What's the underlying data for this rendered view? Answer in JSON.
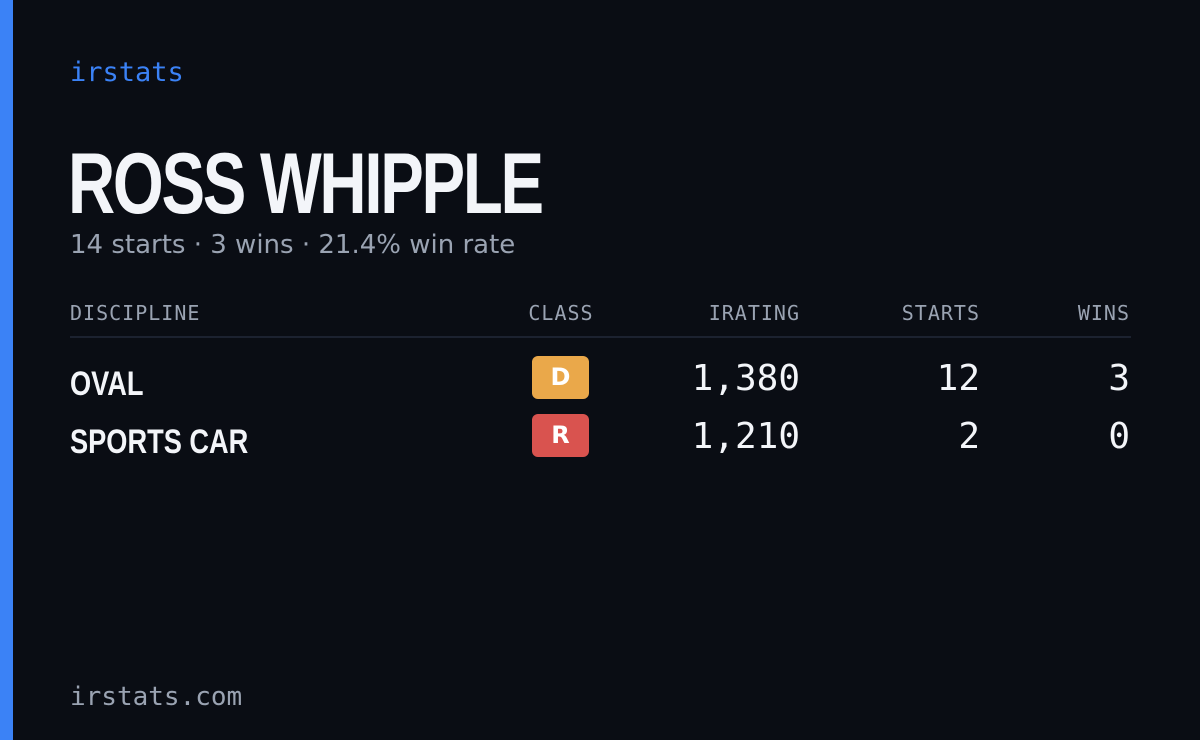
{
  "theme": {
    "accent": "#3b82f6",
    "background": "#0a0d14",
    "text": "#f3f5f9",
    "muted": "#9aa3b2"
  },
  "brand": "irstats",
  "driver": {
    "name": "ROSS WHIPPLE",
    "summary": "14 starts · 3 wins · 21.4% win rate"
  },
  "table": {
    "headers": {
      "discipline": "DISCIPLINE",
      "class": "CLASS",
      "irating": "IRATING",
      "starts": "STARTS",
      "wins": "WINS"
    },
    "rows": [
      {
        "discipline": "OVAL",
        "class": "D",
        "class_color": "#eaa84a",
        "irating": "1,380",
        "starts": "12",
        "wins": "3"
      },
      {
        "discipline": "SPORTS CAR",
        "class": "R",
        "class_color": "#d9534f",
        "irating": "1,210",
        "starts": "2",
        "wins": "0"
      }
    ]
  },
  "footer": {
    "domain": "irstats.com"
  }
}
